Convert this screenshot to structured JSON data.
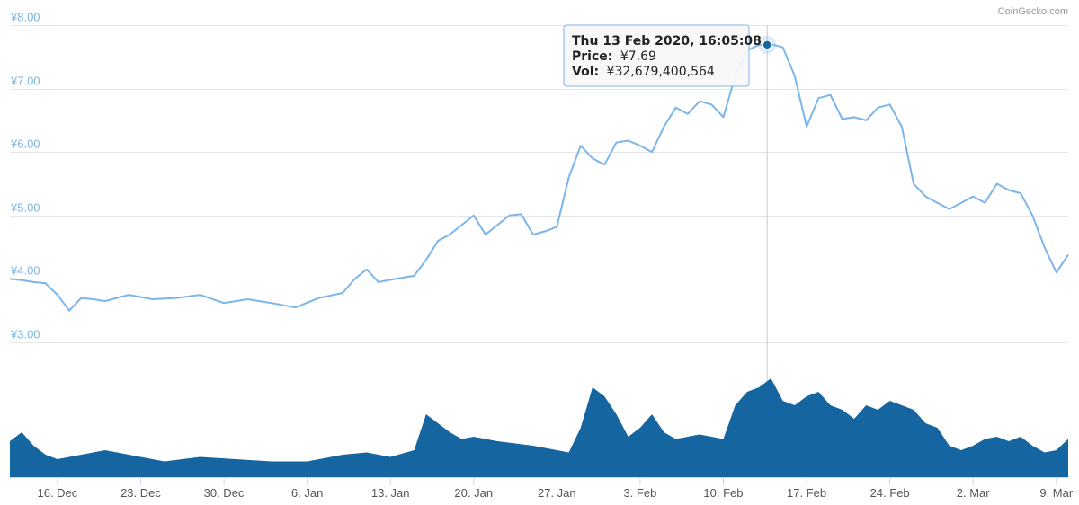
{
  "credit": "CoinGecko.com",
  "colors": {
    "price_line": "#7cb5ec",
    "volume_fill": "#1565a1",
    "marker": "#1565a1",
    "grid": "#e6e6e6",
    "y_tick_text": "#7ab4e0"
  },
  "tooltip": {
    "date": "Thu 13 Feb 2020, 16:05:08",
    "price_label": "Price:",
    "price_value": "¥7.69",
    "vol_label": "Vol:",
    "vol_value": "¥32,679,400,564"
  },
  "chart_data": {
    "type": "line",
    "title": "",
    "xlabel": "",
    "ylabel": "",
    "x_ticks": [
      "16. Dec",
      "23. Dec",
      "30. Dec",
      "6. Jan",
      "13. Jan",
      "20. Jan",
      "27. Jan",
      "3. Feb",
      "10. Feb",
      "17. Feb",
      "24. Feb",
      "2. Mar",
      "9. Mar"
    ],
    "y_ticks": [
      "¥3.00",
      "¥4.00",
      "¥5.00",
      "¥6.00",
      "¥7.00",
      "¥8.00"
    ],
    "ylim": [
      3,
      8
    ],
    "x_range": [
      "2019-12-12",
      "2020-03-10"
    ],
    "grid": true,
    "hover": {
      "date": "2020-02-13",
      "price": 7.69
    },
    "series": [
      {
        "name": "Price",
        "x": [
          "2019-12-12",
          "2019-12-13",
          "2019-12-14",
          "2019-12-15",
          "2019-12-16",
          "2019-12-17",
          "2019-12-18",
          "2019-12-19",
          "2019-12-20",
          "2019-12-22",
          "2019-12-24",
          "2019-12-26",
          "2019-12-28",
          "2019-12-30",
          "2020-01-01",
          "2020-01-03",
          "2020-01-05",
          "2020-01-07",
          "2020-01-09",
          "2020-01-10",
          "2020-01-11",
          "2020-01-12",
          "2020-01-14",
          "2020-01-15",
          "2020-01-16",
          "2020-01-17",
          "2020-01-18",
          "2020-01-19",
          "2020-01-20",
          "2020-01-21",
          "2020-01-22",
          "2020-01-23",
          "2020-01-24",
          "2020-01-25",
          "2020-01-26",
          "2020-01-27",
          "2020-01-28",
          "2020-01-29",
          "2020-01-30",
          "2020-01-31",
          "2020-02-01",
          "2020-02-02",
          "2020-02-03",
          "2020-02-04",
          "2020-02-05",
          "2020-02-06",
          "2020-02-07",
          "2020-02-08",
          "2020-02-09",
          "2020-02-10",
          "2020-02-11",
          "2020-02-12",
          "2020-02-13",
          "2020-02-14",
          "2020-02-15",
          "2020-02-16",
          "2020-02-17",
          "2020-02-18",
          "2020-02-19",
          "2020-02-20",
          "2020-02-21",
          "2020-02-22",
          "2020-02-23",
          "2020-02-24",
          "2020-02-25",
          "2020-02-26",
          "2020-02-27",
          "2020-02-28",
          "2020-02-29",
          "2020-03-01",
          "2020-03-02",
          "2020-03-03",
          "2020-03-04",
          "2020-03-05",
          "2020-03-06",
          "2020-03-07",
          "2020-03-08",
          "2020-03-09",
          "2020-03-10"
        ],
        "values": [
          4.0,
          3.98,
          3.95,
          3.93,
          3.75,
          3.5,
          3.7,
          3.68,
          3.65,
          3.75,
          3.68,
          3.7,
          3.75,
          3.62,
          3.68,
          3.62,
          3.55,
          3.7,
          3.78,
          4.0,
          4.15,
          3.95,
          4.02,
          4.05,
          4.3,
          4.6,
          4.7,
          4.85,
          5.0,
          4.7,
          4.85,
          5.0,
          5.02,
          4.7,
          4.75,
          4.82,
          5.6,
          6.1,
          5.9,
          5.8,
          6.15,
          6.18,
          6.1,
          6.0,
          6.4,
          6.7,
          6.6,
          6.8,
          6.75,
          6.55,
          7.2,
          7.6,
          7.69,
          7.7,
          7.65,
          7.2,
          6.4,
          6.85,
          6.9,
          6.52,
          6.55,
          6.5,
          6.7,
          6.75,
          6.4,
          5.5,
          5.3,
          5.2,
          5.1,
          5.2,
          5.3,
          5.2,
          5.5,
          5.4,
          5.35,
          5.0,
          4.5,
          4.1,
          4.38
        ]
      },
      {
        "name": "Vol",
        "x": [
          "2019-12-12",
          "2019-12-13",
          "2019-12-14",
          "2019-12-15",
          "2019-12-16",
          "2019-12-18",
          "2019-12-20",
          "2019-12-22",
          "2019-12-25",
          "2019-12-28",
          "2019-12-31",
          "2020-01-03",
          "2020-01-06",
          "2020-01-09",
          "2020-01-11",
          "2020-01-13",
          "2020-01-15",
          "2020-01-16",
          "2020-01-17",
          "2020-01-18",
          "2020-01-19",
          "2020-01-20",
          "2020-01-22",
          "2020-01-25",
          "2020-01-28",
          "2020-01-29",
          "2020-01-30",
          "2020-01-31",
          "2020-02-01",
          "2020-02-02",
          "2020-02-03",
          "2020-02-04",
          "2020-02-05",
          "2020-02-06",
          "2020-02-08",
          "2020-02-10",
          "2020-02-11",
          "2020-02-12",
          "2020-02-13",
          "2020-02-14",
          "2020-02-15",
          "2020-02-16",
          "2020-02-17",
          "2020-02-18",
          "2020-02-19",
          "2020-02-20",
          "2020-02-21",
          "2020-02-22",
          "2020-02-23",
          "2020-02-24",
          "2020-02-25",
          "2020-02-26",
          "2020-02-27",
          "2020-02-28",
          "2020-02-29",
          "2020-03-01",
          "2020-03-02",
          "2020-03-03",
          "2020-03-04",
          "2020-03-05",
          "2020-03-06",
          "2020-03-07",
          "2020-03-08",
          "2020-03-09",
          "2020-03-10"
        ],
        "values": [
          0.8,
          1.0,
          0.7,
          0.5,
          0.4,
          0.5,
          0.6,
          0.5,
          0.35,
          0.45,
          0.4,
          0.35,
          0.35,
          0.5,
          0.55,
          0.45,
          0.6,
          1.4,
          1.2,
          1.0,
          0.85,
          0.9,
          0.8,
          0.7,
          0.55,
          1.1,
          2.0,
          1.8,
          1.4,
          0.9,
          1.1,
          1.4,
          1.0,
          0.85,
          0.95,
          0.85,
          1.6,
          1.9,
          2.0,
          2.2,
          1.7,
          1.6,
          1.8,
          1.9,
          1.6,
          1.5,
          1.3,
          1.6,
          1.5,
          1.7,
          1.6,
          1.5,
          1.2,
          1.1,
          0.7,
          0.6,
          0.7,
          0.85,
          0.9,
          0.8,
          0.9,
          0.7,
          0.55,
          0.6,
          0.85
        ]
      }
    ]
  }
}
